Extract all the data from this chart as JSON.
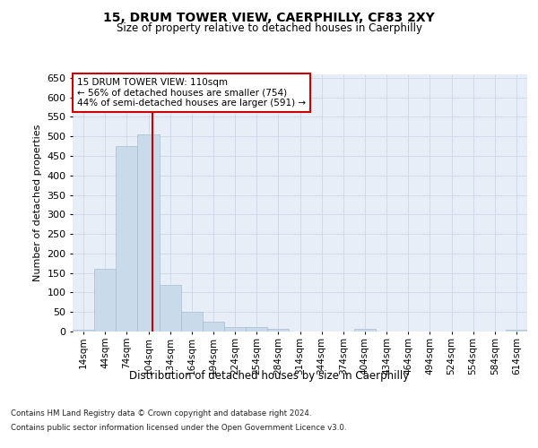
{
  "title": "15, DRUM TOWER VIEW, CAERPHILLY, CF83 2XY",
  "subtitle": "Size of property relative to detached houses in Caerphilly",
  "xlabel": "Distribution of detached houses by size in Caerphilly",
  "ylabel": "Number of detached properties",
  "bar_labels": [
    "14sqm",
    "44sqm",
    "74sqm",
    "104sqm",
    "134sqm",
    "164sqm",
    "194sqm",
    "224sqm",
    "254sqm",
    "284sqm",
    "314sqm",
    "344sqm",
    "374sqm",
    "404sqm",
    "434sqm",
    "464sqm",
    "494sqm",
    "524sqm",
    "554sqm",
    "584sqm",
    "614sqm"
  ],
  "bar_values": [
    5,
    160,
    475,
    505,
    120,
    50,
    25,
    12,
    12,
    8,
    0,
    0,
    0,
    6,
    0,
    0,
    0,
    0,
    0,
    0,
    5
  ],
  "bar_color": "#c9daea",
  "bar_edge_color": "#a8bfd0",
  "grid_color": "#cdd8e8",
  "background_color": "#e8eef8",
  "vline_color": "#cc0000",
  "vline_pos": 3.2,
  "annotation_text": "15 DRUM TOWER VIEW: 110sqm\n← 56% of detached houses are smaller (754)\n44% of semi-detached houses are larger (591) →",
  "annotation_box_color": "#ffffff",
  "annotation_box_edge": "#cc0000",
  "ylim": [
    0,
    660
  ],
  "yticks": [
    0,
    50,
    100,
    150,
    200,
    250,
    300,
    350,
    400,
    450,
    500,
    550,
    600,
    650
  ],
  "footer_line1": "Contains HM Land Registry data © Crown copyright and database right 2024.",
  "footer_line2": "Contains public sector information licensed under the Open Government Licence v3.0."
}
